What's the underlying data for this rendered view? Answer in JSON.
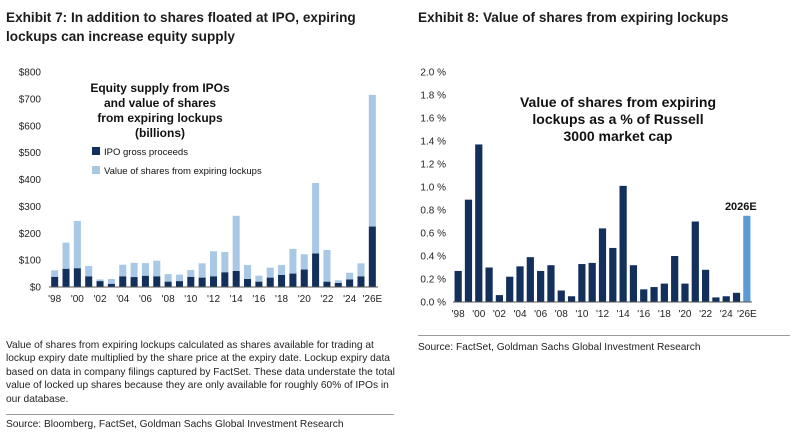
{
  "exhibit7": {
    "title": "Exhibit 7: In addition to shares floated at IPO, expiring lockups can increase equity supply",
    "note": "Value of shares from expiring lockups calculated as shares available for trading at lockup expiry date multiplied by the share price at the expiry date. Lockup expiry data based on data in company filings captured by FactSet. These data understate the total value of locked up shares because they are only available for roughly 60% of IPOs in our database.",
    "source": "Source: Bloomberg, FactSet, Goldman Sachs Global Investment Research"
  },
  "exhibit8": {
    "title": "Exhibit 8: Value of shares from expiring lockups",
    "source": "Source: FactSet, Goldman Sachs Global Investment Research"
  },
  "colors": {
    "dark_navy": "#13305c",
    "light_blue": "#a9c8e6",
    "highlight_blue": "#5b9bd5",
    "highlight_label": "#4a8fd0"
  },
  "chart_data": [
    {
      "type": "bar",
      "stacked": true,
      "title": "Equity supply from IPOs and value of shares from expiring lockups (billions)",
      "title_lines": [
        "Equity supply from IPOs",
        "and value of shares",
        "from expiring lockups",
        "(billions)"
      ],
      "x": [
        1998,
        1999,
        2000,
        2001,
        2002,
        2003,
        2004,
        2005,
        2006,
        2007,
        2008,
        2009,
        2010,
        2011,
        2012,
        2013,
        2014,
        2015,
        2016,
        2017,
        2018,
        2019,
        2020,
        2021,
        2022,
        2023,
        2024,
        2025,
        "2026E"
      ],
      "tick_labels": [
        "'98",
        "'00",
        "'02",
        "'04",
        "'06",
        "'08",
        "'10",
        "'12",
        "'14",
        "'16",
        "'18",
        "'20",
        "'22",
        "'24",
        "'26E"
      ],
      "series": [
        {
          "name": "IPO gross proceeds",
          "color": "#13305c",
          "values": [
            38,
            68,
            70,
            40,
            22,
            12,
            40,
            37,
            42,
            40,
            20,
            22,
            38,
            35,
            40,
            55,
            60,
            30,
            20,
            35,
            45,
            50,
            65,
            125,
            20,
            15,
            28,
            40,
            225
          ]
        },
        {
          "name": "Value of shares from expiring lockups",
          "color": "#a9c8e6",
          "values": [
            24,
            97,
            176,
            38,
            6,
            18,
            43,
            53,
            47,
            58,
            28,
            24,
            25,
            53,
            93,
            75,
            205,
            52,
            22,
            37,
            37,
            92,
            57,
            262,
            118,
            10,
            25,
            48,
            490
          ]
        }
      ],
      "ylim": [
        0,
        800
      ],
      "yticks": [
        "$0",
        "$100",
        "$200",
        "$300",
        "$400",
        "$500",
        "$600",
        "$700",
        "$800"
      ],
      "legend": "inside-top-left",
      "grid": false
    },
    {
      "type": "bar",
      "title": "Value of shares from expiring lockups as a % of Russell 3000 market cap",
      "title_lines": [
        "Value of shares from expiring",
        "lockups as a % of  Russell",
        "3000 market cap"
      ],
      "x": [
        1998,
        1999,
        2000,
        2001,
        2002,
        2003,
        2004,
        2005,
        2006,
        2007,
        2008,
        2009,
        2010,
        2011,
        2012,
        2013,
        2014,
        2015,
        2016,
        2017,
        2018,
        2019,
        2020,
        2021,
        2022,
        2023,
        2024,
        2025,
        "2026E"
      ],
      "tick_labels": [
        "'98",
        "'00",
        "'02",
        "'04",
        "'06",
        "'08",
        "'10",
        "'12",
        "'14",
        "'16",
        "'18",
        "'20",
        "'22",
        "'24",
        "'26E"
      ],
      "values": [
        0.27,
        0.89,
        1.37,
        0.3,
        0.06,
        0.22,
        0.31,
        0.39,
        0.27,
        0.32,
        0.1,
        0.05,
        0.33,
        0.34,
        0.64,
        0.47,
        1.01,
        0.32,
        0.11,
        0.13,
        0.16,
        0.4,
        0.16,
        0.7,
        0.28,
        0.04,
        0.05,
        0.08,
        0.75
      ],
      "highlight": {
        "index": 28,
        "label": "2026E"
      },
      "ylim": [
        0,
        2.0
      ],
      "yticks": [
        "0.0 %",
        "0.2 %",
        "0.4 %",
        "0.6 %",
        "0.8 %",
        "1.0 %",
        "1.2 %",
        "1.4 %",
        "1.6 %",
        "1.8 %",
        "2.0 %"
      ],
      "grid": false
    }
  ]
}
